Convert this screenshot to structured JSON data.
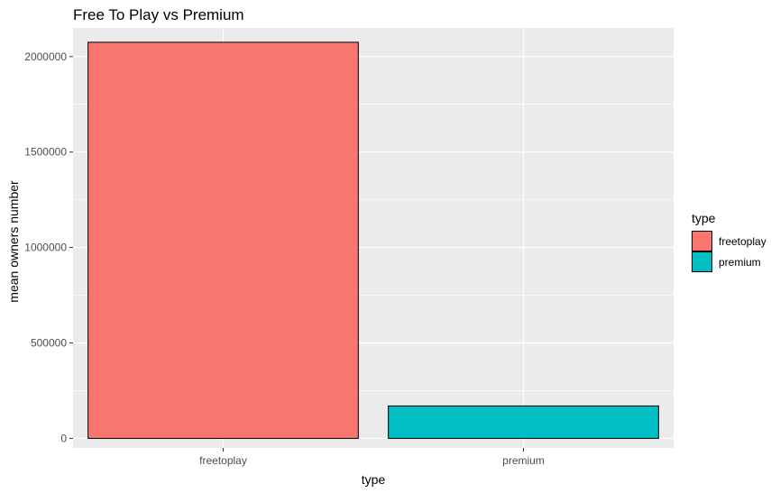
{
  "chart_data": {
    "type": "bar",
    "title": "Free To Play vs Premium",
    "xlabel": "type",
    "ylabel": "mean owners number",
    "categories": [
      "freetoplay",
      "premium"
    ],
    "values": [
      2075000,
      170000
    ],
    "colors": [
      "#F8766D",
      "#00BFC4"
    ],
    "ylim": [
      -50000,
      2150000
    ],
    "yticks": [
      0,
      500000,
      1000000,
      1500000,
      2000000
    ],
    "ytick_labels": [
      "0",
      "500000",
      "1000000",
      "1500000",
      "2000000"
    ],
    "grid": true,
    "panel_background": "#EBEBEB",
    "legend": {
      "title": "type",
      "position": "right",
      "entries": [
        "freetoplay",
        "premium"
      ]
    }
  }
}
